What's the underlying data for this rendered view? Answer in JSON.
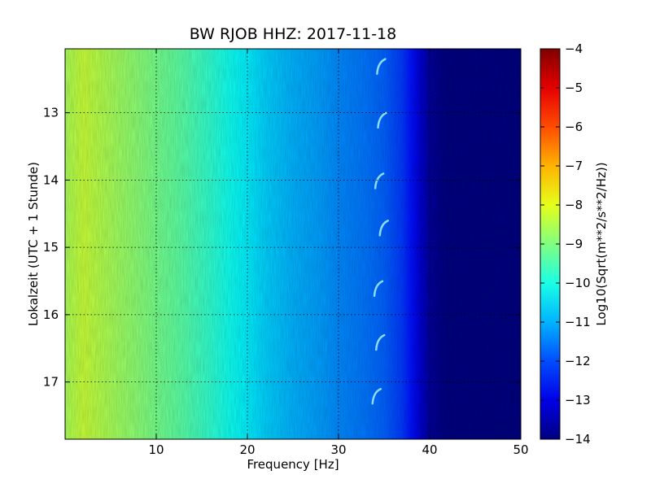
{
  "chart_data": {
    "type": "heatmap",
    "title": "BW RJOB HHZ: 2017-11-18",
    "xlabel": "Frequency [Hz]",
    "ylabel": "Lokalzeit (UTC + 1 Stunde)",
    "xlim": [
      0,
      50
    ],
    "ylim": [
      17.85,
      12.05
    ],
    "x_ticks": [
      10,
      20,
      30,
      40,
      50
    ],
    "y_ticks": [
      13,
      14,
      15,
      16,
      17
    ],
    "grid": true,
    "colormap": "jet",
    "colorbar": {
      "label": "Log10(Sqrt(m**2/s**2/Hz))",
      "range": [
        -14,
        -4
      ],
      "ticks": [
        -14,
        -13,
        -12,
        -11,
        -10,
        -9,
        -8,
        -7,
        -6,
        -5,
        -4
      ]
    },
    "spectral_profile": {
      "frequency_hz": [
        0,
        2,
        5,
        8,
        10,
        13,
        16,
        18,
        20,
        22,
        25,
        28,
        30,
        33,
        35,
        37,
        38,
        39,
        40,
        41,
        42,
        45,
        50
      ],
      "log10_amplitude": [
        -8.6,
        -8.3,
        -8.6,
        -8.9,
        -9.1,
        -9.4,
        -9.8,
        -10.1,
        -10.4,
        -10.7,
        -11.0,
        -11.2,
        -11.4,
        -11.6,
        -11.8,
        -12.2,
        -12.6,
        -13.2,
        -13.7,
        -13.9,
        -14.0,
        -14.0,
        -14.0
      ]
    },
    "transients": [
      {
        "time_h": 12.3,
        "frequency_hz": 34.5
      },
      {
        "time_h": 13.1,
        "frequency_hz": 34.6
      },
      {
        "time_h": 14.0,
        "frequency_hz": 34.3
      },
      {
        "time_h": 14.7,
        "frequency_hz": 34.8
      },
      {
        "time_h": 15.6,
        "frequency_hz": 34.2
      },
      {
        "time_h": 16.4,
        "frequency_hz": 34.4
      },
      {
        "time_h": 17.2,
        "frequency_hz": 34.0
      }
    ]
  }
}
